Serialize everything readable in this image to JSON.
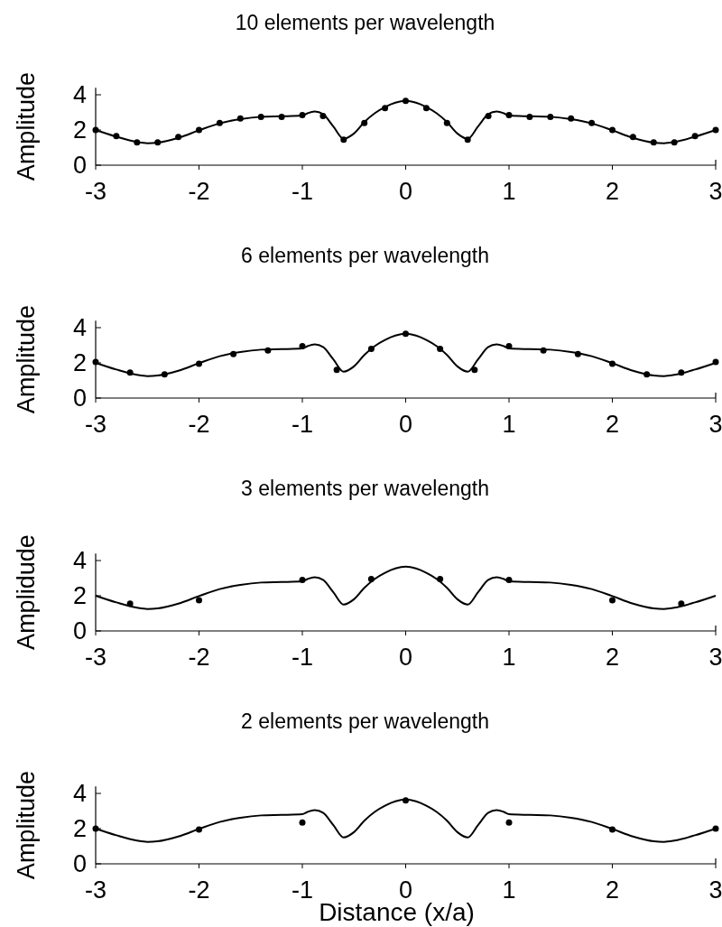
{
  "chart_data": [
    {
      "type": "line",
      "title": "10 elements per wavelength",
      "ylabel": "Amplitude",
      "xlim": [
        -3,
        3
      ],
      "ylim": [
        0,
        4.4
      ],
      "xticks": [
        -3,
        -2,
        -1,
        0,
        1,
        2,
        3
      ],
      "yticks": [
        0,
        2,
        4
      ],
      "series": [
        {
          "type": "line",
          "color": "#000000",
          "x": [
            -3,
            -2.8,
            -2.6,
            -2.5,
            -2.4,
            -2.2,
            -2,
            -1.8,
            -1.6,
            -1.4,
            -1.2,
            -1,
            -0.95,
            -0.88,
            -0.8,
            -0.7,
            -0.6,
            -0.5,
            -0.4,
            -0.3,
            -0.2,
            -0.1,
            0,
            0.1,
            0.2,
            0.3,
            0.4,
            0.5,
            0.6,
            0.7,
            0.8,
            0.88,
            0.95,
            1,
            1.2,
            1.4,
            1.6,
            1.8,
            2,
            2.2,
            2.4,
            2.5,
            2.6,
            2.8,
            3
          ],
          "values": [
            2.0,
            1.62,
            1.32,
            1.25,
            1.28,
            1.55,
            1.98,
            2.38,
            2.62,
            2.75,
            2.78,
            2.82,
            2.95,
            3.05,
            2.9,
            2.2,
            1.5,
            1.8,
            2.45,
            2.95,
            3.3,
            3.55,
            3.65,
            3.55,
            3.3,
            2.95,
            2.45,
            1.8,
            1.5,
            2.2,
            2.9,
            3.05,
            2.95,
            2.82,
            2.78,
            2.75,
            2.62,
            2.38,
            1.98,
            1.55,
            1.28,
            1.25,
            1.32,
            1.62,
            2.0
          ]
        },
        {
          "type": "scatter",
          "marker": "circle",
          "color": "#000000",
          "x": [
            -3,
            -2.8,
            -2.6,
            -2.4,
            -2.2,
            -2,
            -1.8,
            -1.6,
            -1.4,
            -1.2,
            -1,
            -0.8,
            -0.6,
            -0.4,
            -0.2,
            0,
            0.2,
            0.4,
            0.6,
            0.8,
            1,
            1.2,
            1.4,
            1.6,
            1.8,
            2,
            2.2,
            2.4,
            2.6,
            2.8,
            3
          ],
          "values": [
            2.0,
            1.65,
            1.3,
            1.3,
            1.6,
            2.0,
            2.4,
            2.65,
            2.75,
            2.75,
            2.85,
            2.8,
            1.45,
            2.4,
            3.25,
            3.65,
            3.25,
            2.4,
            1.45,
            2.8,
            2.85,
            2.75,
            2.75,
            2.65,
            2.4,
            2.0,
            1.6,
            1.3,
            1.3,
            1.65,
            2.0
          ]
        }
      ]
    },
    {
      "type": "line",
      "title": "6 elements per wavelength",
      "ylabel": "Amplitude",
      "xlim": [
        -3,
        3
      ],
      "ylim": [
        0,
        4.4
      ],
      "xticks": [
        -3,
        -2,
        -1,
        0,
        1,
        2,
        3
      ],
      "yticks": [
        0,
        2,
        4
      ],
      "series": [
        {
          "type": "line",
          "color": "#000000",
          "x": [
            -3,
            -2.8,
            -2.6,
            -2.5,
            -2.4,
            -2.2,
            -2,
            -1.8,
            -1.6,
            -1.4,
            -1.2,
            -1,
            -0.95,
            -0.88,
            -0.8,
            -0.7,
            -0.6,
            -0.5,
            -0.4,
            -0.3,
            -0.2,
            -0.1,
            0,
            0.1,
            0.2,
            0.3,
            0.4,
            0.5,
            0.6,
            0.7,
            0.8,
            0.88,
            0.95,
            1,
            1.2,
            1.4,
            1.6,
            1.8,
            2,
            2.2,
            2.4,
            2.5,
            2.6,
            2.8,
            3
          ],
          "values": [
            2.0,
            1.62,
            1.32,
            1.25,
            1.28,
            1.55,
            1.98,
            2.38,
            2.62,
            2.75,
            2.78,
            2.82,
            2.95,
            3.05,
            2.9,
            2.2,
            1.5,
            1.8,
            2.45,
            2.95,
            3.3,
            3.55,
            3.65,
            3.55,
            3.3,
            2.95,
            2.45,
            1.8,
            1.5,
            2.2,
            2.9,
            3.05,
            2.95,
            2.82,
            2.78,
            2.75,
            2.62,
            2.38,
            1.98,
            1.55,
            1.28,
            1.25,
            1.32,
            1.62,
            2.0
          ]
        },
        {
          "type": "scatter",
          "marker": "circle",
          "color": "#000000",
          "x": [
            -3,
            -2.667,
            -2.333,
            -2,
            -1.667,
            -1.333,
            -1,
            -0.667,
            -0.333,
            0,
            0.333,
            0.667,
            1,
            1.333,
            1.667,
            2,
            2.333,
            2.667,
            3
          ],
          "values": [
            2.05,
            1.45,
            1.35,
            1.95,
            2.5,
            2.7,
            2.95,
            1.6,
            2.8,
            3.65,
            2.8,
            1.6,
            2.95,
            2.7,
            2.5,
            1.95,
            1.35,
            1.45,
            2.05
          ]
        }
      ]
    },
    {
      "type": "line",
      "title": "3 elements per wavelength",
      "ylabel": "Amplidude",
      "xlim": [
        -3,
        3
      ],
      "ylim": [
        0,
        4.4
      ],
      "xticks": [
        -3,
        -2,
        -1,
        0,
        1,
        2,
        3
      ],
      "yticks": [
        0,
        2,
        4
      ],
      "series": [
        {
          "type": "line",
          "color": "#000000",
          "x": [
            -3,
            -2.8,
            -2.6,
            -2.5,
            -2.4,
            -2.2,
            -2,
            -1.8,
            -1.6,
            -1.4,
            -1.2,
            -1,
            -0.95,
            -0.88,
            -0.8,
            -0.7,
            -0.6,
            -0.5,
            -0.4,
            -0.3,
            -0.2,
            -0.1,
            0,
            0.1,
            0.2,
            0.3,
            0.4,
            0.5,
            0.6,
            0.7,
            0.8,
            0.88,
            0.95,
            1,
            1.2,
            1.4,
            1.6,
            1.8,
            2,
            2.2,
            2.4,
            2.5,
            2.6,
            2.8,
            3
          ],
          "values": [
            2.0,
            1.62,
            1.32,
            1.25,
            1.28,
            1.55,
            1.98,
            2.38,
            2.62,
            2.75,
            2.78,
            2.82,
            2.95,
            3.05,
            2.9,
            2.2,
            1.5,
            1.8,
            2.45,
            2.95,
            3.3,
            3.55,
            3.65,
            3.55,
            3.3,
            2.95,
            2.45,
            1.8,
            1.5,
            2.2,
            2.9,
            3.05,
            2.95,
            2.82,
            2.78,
            2.75,
            2.62,
            2.38,
            1.98,
            1.55,
            1.28,
            1.25,
            1.32,
            1.62,
            2.0
          ]
        },
        {
          "type": "scatter",
          "marker": "circle",
          "color": "#000000",
          "x": [
            -2.667,
            -2,
            -1,
            -0.333,
            0.333,
            1,
            2,
            2.667
          ],
          "values": [
            1.55,
            1.75,
            2.9,
            2.95,
            2.95,
            2.9,
            1.75,
            1.55
          ]
        }
      ]
    },
    {
      "type": "line",
      "title": "2 elements per wavelength",
      "ylabel": "Amplitude",
      "xlabel": "Distance (x/a)",
      "xlim": [
        -3,
        3
      ],
      "ylim": [
        0,
        4.4
      ],
      "xticks": [
        -3,
        -2,
        -1,
        0,
        1,
        2,
        3
      ],
      "yticks": [
        0,
        2,
        4
      ],
      "series": [
        {
          "type": "line",
          "color": "#000000",
          "x": [
            -3,
            -2.8,
            -2.6,
            -2.5,
            -2.4,
            -2.2,
            -2,
            -1.8,
            -1.6,
            -1.4,
            -1.2,
            -1,
            -0.95,
            -0.88,
            -0.8,
            -0.7,
            -0.6,
            -0.5,
            -0.4,
            -0.3,
            -0.2,
            -0.1,
            0,
            0.1,
            0.2,
            0.3,
            0.4,
            0.5,
            0.6,
            0.7,
            0.8,
            0.88,
            0.95,
            1,
            1.2,
            1.4,
            1.6,
            1.8,
            2,
            2.2,
            2.4,
            2.5,
            2.6,
            2.8,
            3
          ],
          "values": [
            2.0,
            1.62,
            1.32,
            1.25,
            1.28,
            1.55,
            1.98,
            2.38,
            2.62,
            2.75,
            2.78,
            2.82,
            2.95,
            3.05,
            2.9,
            2.2,
            1.5,
            1.8,
            2.45,
            2.95,
            3.3,
            3.55,
            3.65,
            3.55,
            3.3,
            2.95,
            2.45,
            1.8,
            1.5,
            2.2,
            2.9,
            3.05,
            2.95,
            2.82,
            2.78,
            2.75,
            2.62,
            2.38,
            1.98,
            1.55,
            1.28,
            1.25,
            1.32,
            1.62,
            2.0
          ]
        },
        {
          "type": "scatter",
          "marker": "circle",
          "color": "#000000",
          "x": [
            -3,
            -2,
            -1,
            0,
            1,
            2,
            3
          ],
          "values": [
            2.0,
            1.95,
            2.35,
            3.6,
            2.35,
            1.95,
            2.0
          ]
        }
      ]
    }
  ]
}
